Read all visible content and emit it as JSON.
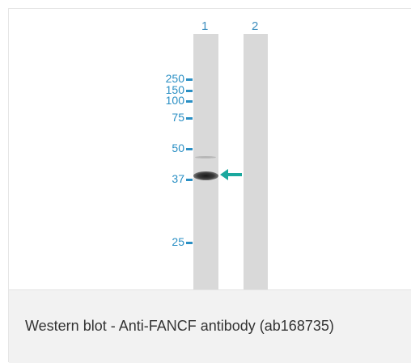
{
  "lanes": [
    {
      "label": "1"
    },
    {
      "label": "2"
    }
  ],
  "markers": [
    "250",
    "150",
    "100",
    "75",
    "50",
    "37",
    "25"
  ],
  "caption": "Western blot - Anti-FANCF antibody (ab168735)",
  "colors": {
    "marker": "#2a8fc4",
    "arrow": "#1aa89e",
    "lane": "#d9d9d9",
    "caption_bg": "#f2f2f2"
  }
}
